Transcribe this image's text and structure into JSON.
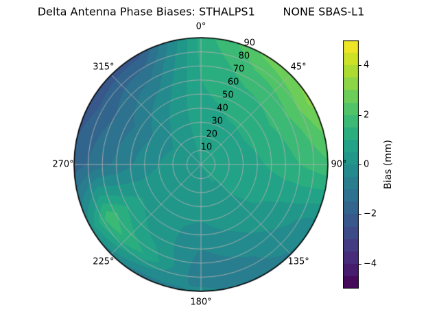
{
  "chart_data": {
    "type": "heatmap",
    "projection": "polar",
    "title": "Delta Antenna Phase Biases: STHALPS1        NONE SBAS-L1",
    "azimuth_tick_degrees": [
      0,
      45,
      90,
      135,
      180,
      225,
      270,
      315
    ],
    "azimuth_tick_labels": [
      "0°",
      "45°",
      "90°",
      "135°",
      "180°",
      "225°",
      "270°",
      "315°"
    ],
    "radial_ticks": [
      10,
      20,
      30,
      40,
      50,
      60,
      70,
      80,
      90
    ],
    "radial_tick_labels": [
      "10",
      "20",
      "30",
      "40",
      "50",
      "60",
      "70",
      "80",
      "90"
    ],
    "radial_max": 90,
    "radial_label_angle_deg": 22.5,
    "grid": true,
    "contour_interval_mm": 0.5,
    "colorbar": {
      "label": "Bias (mm)",
      "ticks": [
        4,
        2,
        0,
        -2,
        -4
      ],
      "tick_labels": [
        "4",
        "2",
        "0",
        "−2",
        "−4"
      ],
      "vmin": -5,
      "vmax": 5,
      "colormap": "viridis",
      "stops": [
        "#440154",
        "#482475",
        "#414487",
        "#355f8d",
        "#2a788e",
        "#21918c",
        "#22a884",
        "#44bf70",
        "#7ad151",
        "#bddf26",
        "#fde725"
      ]
    },
    "field": {
      "azimuth_deg": [
        0,
        30,
        60,
        90,
        120,
        150,
        180,
        210,
        240,
        270,
        300,
        330
      ],
      "radius": [
        0,
        15,
        30,
        45,
        60,
        75,
        90
      ],
      "bias_mm": [
        [
          0.5,
          0.6,
          0.8,
          0.9,
          1.0,
          1.1,
          1.2
        ],
        [
          0.5,
          0.6,
          0.9,
          1.1,
          1.4,
          1.9,
          2.6
        ],
        [
          0.5,
          0.6,
          0.9,
          1.2,
          1.6,
          2.2,
          3.2
        ],
        [
          0.5,
          0.6,
          0.8,
          1.0,
          1.3,
          1.6,
          1.9
        ],
        [
          0.5,
          0.5,
          0.6,
          0.6,
          0.4,
          0.1,
          -0.4
        ],
        [
          0.5,
          0.5,
          0.4,
          0.2,
          -0.1,
          -0.5,
          -0.7
        ],
        [
          0.5,
          0.4,
          0.2,
          -0.1,
          -0.5,
          -0.9,
          -0.4
        ],
        [
          0.5,
          0.4,
          0.3,
          0.1,
          0.3,
          0.9,
          -0.8
        ],
        [
          0.5,
          0.4,
          0.3,
          0.4,
          1.0,
          1.9,
          0.2
        ],
        [
          0.5,
          0.3,
          0.0,
          -0.4,
          -0.9,
          -1.3,
          -1.8
        ],
        [
          0.5,
          0.2,
          -0.2,
          -0.7,
          -1.2,
          -1.7,
          -2.3
        ],
        [
          0.5,
          0.4,
          0.2,
          0.0,
          -0.5,
          -1.2,
          -2.2
        ]
      ]
    }
  },
  "colors": {
    "background": "#ffffff",
    "grid": "#b0b0b0",
    "outline": "#000000",
    "text": "#000000"
  }
}
